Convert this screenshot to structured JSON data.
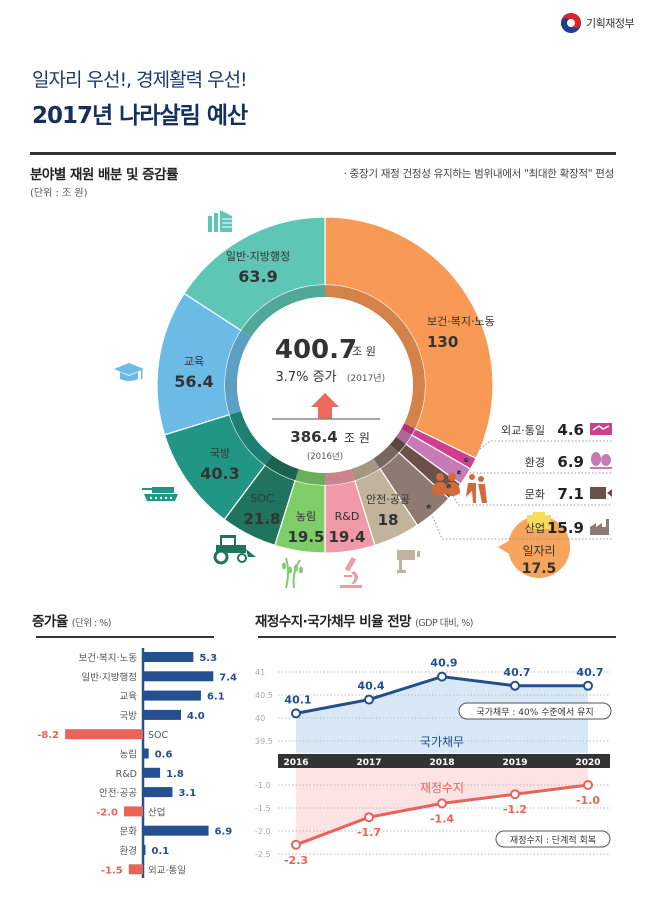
{
  "header": {
    "logo_text": "기획재정부",
    "subtitle": "일자리 우선!, 경제활력 우선!",
    "title": "2017년 나라살림 예산"
  },
  "section_allocation": {
    "title": "분야별 재원 배분 및 증감률",
    "unit": "(단위 : 조 원)",
    "note": "· 중장기 재정 건정성 유지하는 범위내에서 \"최대한 확장적\" 편성"
  },
  "section_growth": {
    "title": "증가율",
    "unit": "(단위 : %)"
  },
  "section_outlook": {
    "title": "재정수지·국가채무 비율 전망",
    "unit": "(GDP 대비, %)"
  },
  "chart_data": [
    {
      "type": "pie",
      "title": "분야별 재원 배분",
      "unit": "조 원",
      "center": {
        "total_2017": "400.7",
        "total_unit": "조 원",
        "growth": "3.7% 증가",
        "growth_year": "(2017년)",
        "total_2016": "386.4",
        "total_2016_unit": "조 원",
        "year_2016": "(2016년)"
      },
      "callout": {
        "label": "일자리",
        "value": "17.5",
        "color": "#f7a45c"
      },
      "slices": [
        {
          "label": "보건·복지·노동",
          "value": 130,
          "color": "#f89a56",
          "icon": "family-elderly-icon"
        },
        {
          "label": "외교·통일",
          "value": 4.6,
          "color": "#d03e8e",
          "icon": "handshake-icon"
        },
        {
          "label": "환경",
          "value": 6.9,
          "color": "#c67bb6",
          "icon": "trees-icon"
        },
        {
          "label": "문화",
          "value": 7.1,
          "color": "#6b5248",
          "icon": "video-camera-icon"
        },
        {
          "label": "산업",
          "value": 15.9,
          "color": "#8e7a70",
          "icon": "factory-icon"
        },
        {
          "label": "안전·공공",
          "value": 18,
          "color": "#c1b39c",
          "icon": "cctv-icon"
        },
        {
          "label": "R&D",
          "value": 19.4,
          "color": "#f09aa7",
          "icon": "microscope-icon"
        },
        {
          "label": "농림",
          "value": 19.5,
          "color": "#7ecd69",
          "icon": "wheat-icon"
        },
        {
          "label": "SOC",
          "value": 21.8,
          "color": "#20735e",
          "icon": "tractor-icon"
        },
        {
          "label": "국방",
          "value": 40.3,
          "color": "#229685",
          "icon": "tank-icon"
        },
        {
          "label": "교육",
          "value": 56.4,
          "color": "#6cbbe6",
          "icon": "graduation-cap-icon"
        },
        {
          "label": "일반·지방행정",
          "value": 63.9,
          "color": "#5ec6b4",
          "icon": "building-icon"
        }
      ]
    },
    {
      "type": "bar",
      "orientation": "horizontal",
      "title": "증가율",
      "unit": "%",
      "positive_color": "#264f8f",
      "negative_color": "#e8635a",
      "categories": [
        "보건·복지·노동",
        "일반·지방행정",
        "교육",
        "국방",
        "SOC",
        "농림",
        "R&D",
        "안전·공공",
        "산업",
        "문화",
        "환경",
        "외교·통일"
      ],
      "values": [
        5.3,
        7.4,
        6.1,
        4.0,
        -8.2,
        0.6,
        1.8,
        3.1,
        -2.0,
        6.9,
        0.1,
        -1.5
      ],
      "labels": [
        "5.3",
        "7.4",
        "6.1",
        "4.0",
        "-8.2",
        "0.6",
        "1.8",
        "3.1",
        "-2.0",
        "6.9",
        "0.1",
        "-1.5"
      ]
    },
    {
      "type": "line",
      "title": "국가채무",
      "x": [
        "2016",
        "2017",
        "2018",
        "2019",
        "2020"
      ],
      "series": [
        {
          "name": "국가채무",
          "values": [
            40.1,
            40.4,
            40.9,
            40.7,
            40.7
          ],
          "labels": [
            "40.1",
            "40.4",
            "40.9",
            "40.7",
            "40.7"
          ],
          "color": "#234f8c"
        }
      ],
      "yticks": [
        "41",
        "40.5",
        "40",
        "39.5"
      ],
      "ylim": [
        39.5,
        41
      ],
      "area_label": "국가채무",
      "annotation": "국가채무 : 40% 수준에서 유지"
    },
    {
      "type": "line",
      "title": "재정수지",
      "x": [
        "2016",
        "2017",
        "2018",
        "2019",
        "2020"
      ],
      "series": [
        {
          "name": "재정수지",
          "values": [
            -2.3,
            -1.7,
            -1.4,
            -1.2,
            -1.0
          ],
          "labels": [
            "-2.3",
            "-1.7",
            "-1.4",
            "-1.2",
            "-1.0"
          ],
          "color": "#e8635a"
        }
      ],
      "yticks": [
        "-1.0",
        "-1.5",
        "-2.0",
        "-2.5"
      ],
      "ylim": [
        -2.5,
        -1.0
      ],
      "area_label": "재정수지",
      "annotation": "재정수지 : 단계적 회복"
    }
  ]
}
